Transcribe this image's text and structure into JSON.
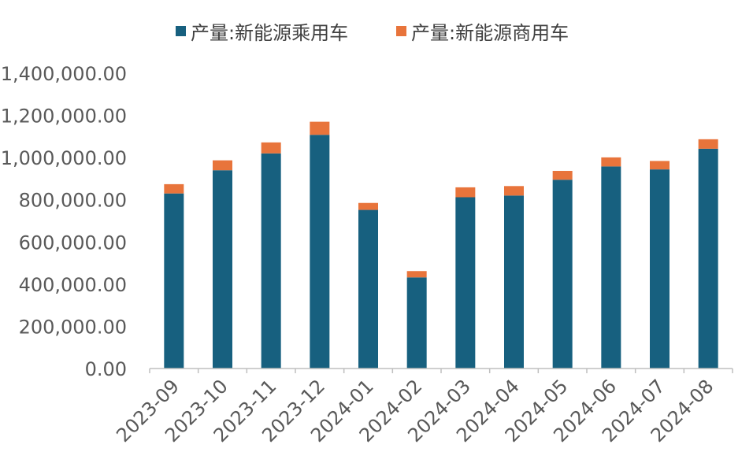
{
  "chart_data": {
    "type": "bar",
    "stacked": true,
    "categories": [
      "2023-09",
      "2023-10",
      "2023-11",
      "2023-12",
      "2024-01",
      "2024-02",
      "2024-03",
      "2024-04",
      "2024-05",
      "2024-06",
      "2024-07",
      "2024-08"
    ],
    "series": [
      {
        "name": "产量:新能源乘用车",
        "color": "#17607f",
        "values": [
          830000,
          940000,
          1020000,
          1108000,
          752000,
          432000,
          812000,
          820000,
          895000,
          958000,
          944000,
          1042000
        ]
      },
      {
        "name": "产量:新能源商用车",
        "color": "#e8743b",
        "values": [
          44000,
          47000,
          52000,
          62000,
          33000,
          30000,
          47000,
          45000,
          42000,
          43000,
          40000,
          45000
        ]
      }
    ],
    "y_tick_labels": [
      "0.00",
      "200,000.00",
      "400,000.00",
      "600,000.00",
      "800,000.00",
      "1,000,000.00",
      "1,200,000.00",
      "1,400,000.00"
    ],
    "ylim": [
      0,
      1400000
    ],
    "grid": false,
    "legend_position": "top-center",
    "title": "",
    "xlabel": "",
    "ylabel": ""
  }
}
